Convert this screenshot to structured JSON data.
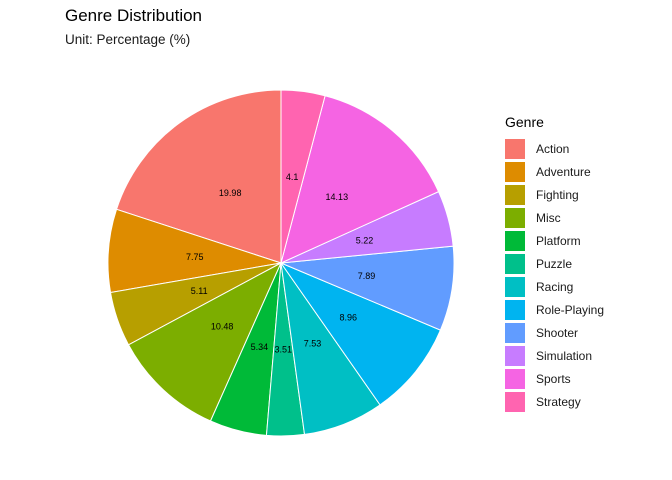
{
  "chart_data": {
    "type": "pie",
    "title": "Genre Distribution",
    "subtitle": "Unit: Percentage (%)",
    "legend_title": "Genre",
    "legend_position": "right",
    "categories": [
      "Action",
      "Adventure",
      "Fighting",
      "Misc",
      "Platform",
      "Puzzle",
      "Racing",
      "Role-Playing",
      "Shooter",
      "Simulation",
      "Sports",
      "Strategy"
    ],
    "values": [
      19.98,
      7.75,
      5.11,
      10.48,
      5.34,
      3.51,
      7.53,
      8.96,
      7.89,
      5.22,
      14.13,
      4.1
    ],
    "colors": [
      "#F8766D",
      "#DE8C00",
      "#B79F00",
      "#7CAE00",
      "#00BA38",
      "#00C08B",
      "#00BFC4",
      "#00B4F0",
      "#619CFF",
      "#C77CFF",
      "#F564E3",
      "#FF64B0"
    ]
  }
}
